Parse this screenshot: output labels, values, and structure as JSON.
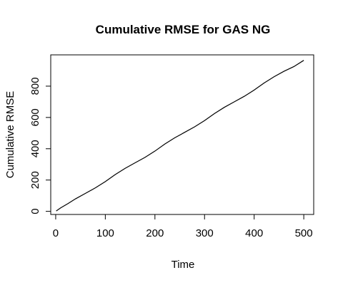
{
  "chart_data": {
    "type": "line",
    "title": "Cumulative RMSE for GAS NG",
    "xlabel": "Time",
    "ylabel": "Cumulative RMSE",
    "xlim": [
      -10,
      520
    ],
    "ylim": [
      -20,
      1000
    ],
    "x_ticks": [
      0,
      100,
      200,
      300,
      400,
      500
    ],
    "y_ticks": [
      0,
      200,
      400,
      600,
      800
    ],
    "grid": false,
    "legend": "none",
    "line_color": "#000000",
    "series": [
      {
        "x": [
          1,
          10,
          25,
          40,
          60,
          80,
          100,
          120,
          140,
          160,
          180,
          200,
          220,
          240,
          260,
          280,
          300,
          320,
          340,
          360,
          380,
          400,
          420,
          440,
          460,
          480,
          500
        ],
        "y": [
          2,
          22,
          50,
          80,
          115,
          150,
          190,
          235,
          275,
          310,
          345,
          385,
          430,
          470,
          505,
          540,
          580,
          625,
          665,
          700,
          735,
          775,
          820,
          860,
          895,
          925,
          965
        ]
      }
    ]
  }
}
